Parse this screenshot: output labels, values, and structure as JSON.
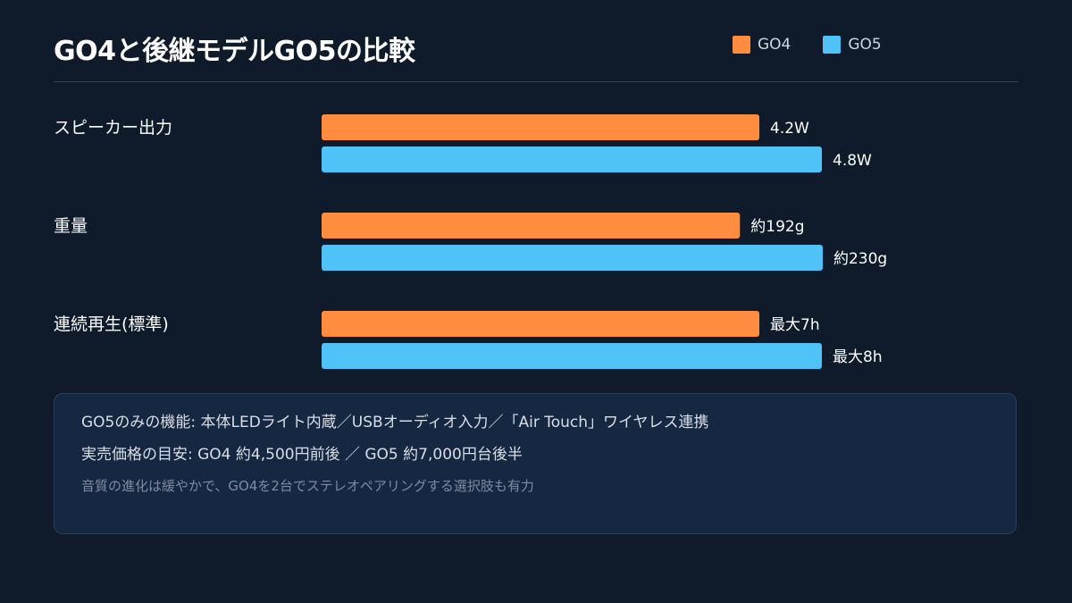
{
  "chart_data": {
    "type": "bar",
    "orientation": "horizontal",
    "title": "GO4と後継モデルGO5の比較",
    "legend_placement": "top-right",
    "grid": false,
    "series": [
      {
        "name": "GO4",
        "color": "#ff8c3f"
      },
      {
        "name": "GO5",
        "color": "#4fc3f7"
      }
    ],
    "categories": [
      {
        "label": "スピーカー出力",
        "max": 6,
        "values": [
          4.2,
          4.8
        ],
        "value_labels": [
          "4.2W",
          "4.8W"
        ]
      },
      {
        "label": "重量",
        "max": 287,
        "values": [
          192,
          230
        ],
        "value_labels": [
          "約192g",
          "約230g"
        ]
      },
      {
        "label": "連続再生(標準)",
        "max": 10,
        "values": [
          7,
          8
        ],
        "value_labels": [
          "最大7h",
          "最大8h"
        ]
      }
    ]
  },
  "notes": {
    "line1": "GO5のみの機能: 本体LEDライト内蔵／USBオーディオ入力／「Air Touch」ワイヤレス連携",
    "line2": "実売価格の目安: GO4 約4,500円前後 ／ GO5 約7,000円台後半",
    "line3": "音質の進化は緩やかで、GO4を2台でステレオペアリングする選択肢も有力"
  }
}
